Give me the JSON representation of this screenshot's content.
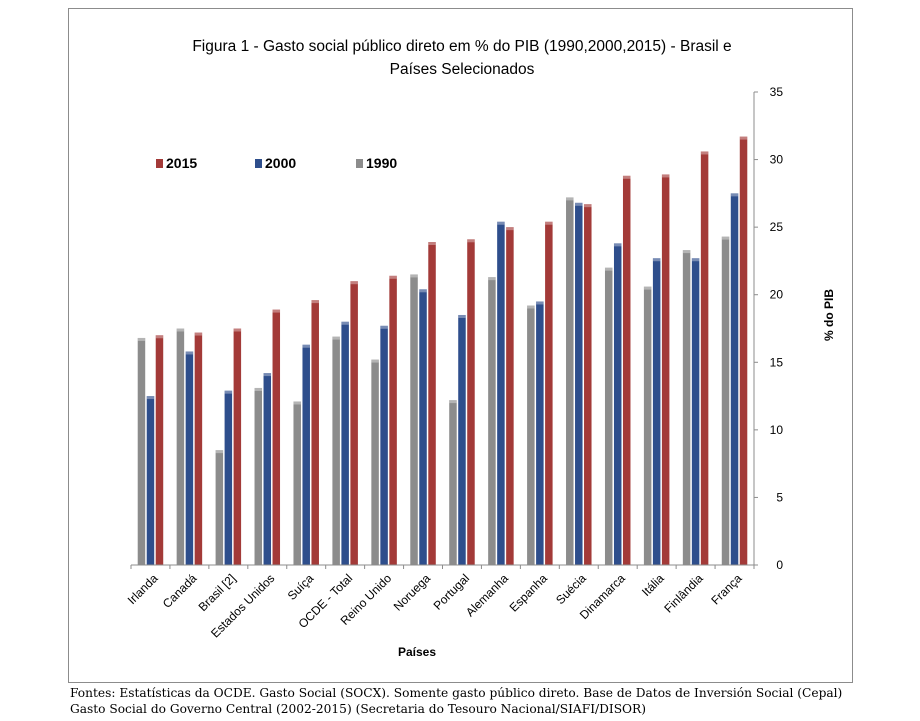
{
  "chart_data": {
    "type": "bar",
    "title_lines": [
      "Figura 1 - Gasto social público direto em % do PIB (1990,2000,2015) - Brasil e",
      "Países Selecionados"
    ],
    "xlabel": "Países",
    "ylabel": "% do PIB",
    "ylim": [
      0,
      35
    ],
    "yticks": [
      0,
      5,
      10,
      15,
      20,
      25,
      30,
      35
    ],
    "categories": [
      "Irlanda",
      "Canadá",
      "Brasil [2]",
      "Estados Unidos",
      "Suíça",
      "OCDE - Total",
      "Reino Unido",
      "Noruega",
      "Portugal",
      "Alemanha",
      "Espanha",
      "Suécia",
      "Dinamarca",
      "Itália",
      "Finlândia",
      "França"
    ],
    "series": [
      {
        "name": "1990",
        "color": "#8c8c8c",
        "values": [
          16.8,
          17.5,
          8.5,
          13.1,
          12.1,
          16.9,
          15.2,
          21.5,
          12.2,
          21.3,
          19.2,
          27.2,
          22.0,
          20.6,
          23.3,
          24.3
        ]
      },
      {
        "name": "2000",
        "color": "#2e4e8c",
        "values": [
          12.5,
          15.8,
          12.9,
          14.2,
          16.3,
          18.0,
          17.7,
          20.4,
          18.5,
          25.4,
          19.5,
          26.8,
          23.8,
          22.7,
          22.7,
          27.5
        ]
      },
      {
        "name": "2015",
        "color": "#a33a38",
        "values": [
          17.0,
          17.2,
          17.5,
          18.9,
          19.6,
          21.0,
          21.4,
          23.9,
          24.1,
          25.0,
          25.4,
          26.7,
          28.8,
          28.9,
          30.6,
          31.7
        ]
      }
    ],
    "legend": {
      "placement": "top-left",
      "order": [
        "2015",
        "2000",
        "1990"
      ]
    },
    "grid": false
  },
  "footer": {
    "line1": "Fontes: Estatísticas da OCDE. Gasto Social (SOCX). Somente gasto público direto. Base de Datos de Inversión Social (Cepal)",
    "line2": "Gasto Social do Governo Central (2002-2015) (Secretaria do Tesouro Nacional/SIAFI/DISOR)"
  }
}
